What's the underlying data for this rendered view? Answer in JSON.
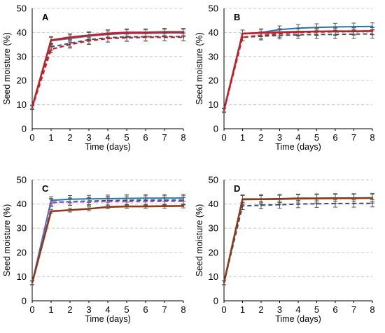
{
  "chart_data": [
    {
      "type": "line",
      "title": "A",
      "xlabel": "Time (days)",
      "ylabel": "Seed moisture (%)",
      "xlim": [
        0,
        8
      ],
      "ylim": [
        0,
        50
      ],
      "xticks": [
        "0",
        "1",
        "2",
        "3",
        "4",
        "5",
        "6",
        "7",
        "8"
      ],
      "yticks": [
        "0",
        "10",
        "20",
        "30",
        "40",
        "50"
      ],
      "grid": true,
      "x": [
        0,
        1,
        2,
        3,
        4,
        5,
        6,
        7,
        8
      ],
      "series": [
        {
          "color": "#4a6fa5",
          "dash": false,
          "width": 2,
          "values": [
            9.0,
            36.5,
            37.5,
            38.5,
            39.2,
            39.6,
            39.6,
            39.8,
            39.8
          ],
          "err": [
            0.8,
            1.5,
            1.5,
            1.5,
            1.5,
            1.5,
            1.5,
            1.5,
            1.5
          ]
        },
        {
          "color": "#3a4f6e",
          "dash": true,
          "width": 2,
          "values": [
            8.8,
            34.0,
            35.5,
            37.0,
            37.8,
            38.2,
            38.2,
            38.3,
            38.3
          ],
          "err": [
            0.8,
            1.5,
            1.5,
            1.8,
            1.8,
            1.8,
            1.8,
            1.8,
            1.8
          ]
        },
        {
          "color": "#cc1f1f",
          "dash": true,
          "width": 2.2,
          "values": [
            8.8,
            33.0,
            35.0,
            36.5,
            37.5,
            37.8,
            38.0,
            38.0,
            38.0
          ],
          "err": [
            0.8,
            1.5,
            1.5,
            1.5,
            1.5,
            1.5,
            1.5,
            1.5,
            1.5
          ]
        },
        {
          "color": "#c0202a",
          "dash": false,
          "width": 2.6,
          "values": [
            9.0,
            36.8,
            38.0,
            38.8,
            39.6,
            40.0,
            40.0,
            40.2,
            40.2
          ],
          "err": [
            0.8,
            1.5,
            1.5,
            1.5,
            1.5,
            1.5,
            1.5,
            1.5,
            1.5
          ]
        }
      ]
    },
    {
      "type": "line",
      "title": "B",
      "xlabel": "Time (days)",
      "ylabel": "Seed moisture (%)",
      "xlim": [
        0,
        8
      ],
      "ylim": [
        0,
        50
      ],
      "xticks": [
        "0",
        "1",
        "2",
        "3",
        "4",
        "5",
        "6",
        "7",
        "8"
      ],
      "yticks": [
        "0",
        "10",
        "20",
        "30",
        "40",
        "50"
      ],
      "grid": true,
      "x": [
        0,
        1,
        2,
        3,
        4,
        5,
        6,
        7,
        8
      ],
      "series": [
        {
          "color": "#1f77b4",
          "dash": false,
          "width": 2,
          "values": [
            7.8,
            39.5,
            40.0,
            41.2,
            41.8,
            42.1,
            42.3,
            42.4,
            42.5
          ],
          "err": [
            0.8,
            1.5,
            1.5,
            1.5,
            1.5,
            1.5,
            1.5,
            1.5,
            1.5
          ]
        },
        {
          "color": "#3a4f6e",
          "dash": true,
          "width": 2,
          "values": [
            7.6,
            38.0,
            38.4,
            38.8,
            39.0,
            39.2,
            39.2,
            39.3,
            39.4
          ],
          "err": [
            0.8,
            1.5,
            1.5,
            1.5,
            1.5,
            1.8,
            1.8,
            1.8,
            1.8
          ]
        },
        {
          "color": "#cc1f1f",
          "dash": true,
          "width": 2.2,
          "values": [
            7.6,
            38.0,
            38.8,
            39.5,
            40.0,
            40.2,
            40.3,
            40.4,
            40.5
          ],
          "err": [
            0.8,
            1.5,
            1.5,
            1.5,
            1.5,
            1.5,
            1.5,
            1.5,
            1.5
          ]
        },
        {
          "color": "#c0202a",
          "dash": false,
          "width": 2.6,
          "values": [
            7.8,
            39.5,
            39.8,
            40.1,
            40.3,
            40.4,
            40.5,
            40.5,
            40.6
          ],
          "err": [
            0.8,
            1.5,
            1.5,
            1.5,
            1.5,
            1.5,
            1.5,
            1.5,
            1.5
          ]
        }
      ]
    },
    {
      "type": "line",
      "title": "C",
      "xlabel": "Time (days)",
      "ylabel": "Seed moisture (%)",
      "xlim": [
        0,
        8
      ],
      "ylim": [
        0,
        50
      ],
      "xticks": [
        "0",
        "1",
        "2",
        "3",
        "4",
        "5",
        "6",
        "7",
        "8"
      ],
      "yticks": [
        "0",
        "10",
        "20",
        "30",
        "40",
        "50"
      ],
      "grid": true,
      "x": [
        0,
        1,
        2,
        3,
        4,
        5,
        6,
        7,
        8
      ],
      "series": [
        {
          "color": "#1f77b4",
          "dash": false,
          "width": 2,
          "values": [
            7.5,
            41.5,
            42.0,
            42.1,
            42.2,
            42.3,
            42.4,
            42.4,
            42.5
          ],
          "err": [
            0.8,
            1.5,
            1.5,
            1.5,
            1.5,
            1.5,
            1.5,
            1.5,
            1.5
          ]
        },
        {
          "color": "#3a4f6e",
          "dash": true,
          "width": 2,
          "values": [
            7.4,
            40.5,
            41.0,
            41.2,
            41.4,
            41.5,
            41.6,
            41.6,
            41.6
          ],
          "err": [
            0.8,
            1.5,
            1.5,
            1.5,
            1.8,
            1.8,
            1.8,
            1.8,
            1.8
          ]
        },
        {
          "color": "#9b59d0",
          "dash": true,
          "width": 2.2,
          "values": [
            7.4,
            40.8,
            40.9,
            40.9,
            41.0,
            41.0,
            41.0,
            41.1,
            41.1
          ],
          "err": [
            0.8,
            1.5,
            1.5,
            1.5,
            1.5,
            1.5,
            1.5,
            1.5,
            1.5
          ]
        },
        {
          "color": "#8b3a1a",
          "dash": false,
          "width": 2.6,
          "values": [
            7.5,
            37.0,
            37.5,
            38.0,
            38.8,
            39.0,
            39.0,
            39.1,
            39.2
          ],
          "err": [
            0.8,
            0.8,
            0.8,
            0.8,
            0.8,
            0.8,
            0.8,
            0.8,
            0.8
          ]
        }
      ]
    },
    {
      "type": "line",
      "title": "D",
      "xlabel": "Time (days)",
      "ylabel": "Seed moisture (%)",
      "xlim": [
        0,
        8
      ],
      "ylim": [
        0,
        50
      ],
      "xticks": [
        "0",
        "1",
        "2",
        "3",
        "4",
        "5",
        "6",
        "7",
        "8"
      ],
      "yticks": [
        "0",
        "10",
        "20",
        "30",
        "40",
        "50"
      ],
      "grid": true,
      "x": [
        0,
        1,
        2,
        3,
        4,
        5,
        6,
        7,
        8
      ],
      "series": [
        {
          "color": "#1f77b4",
          "dash": false,
          "width": 2,
          "values": [
            7.5,
            41.8,
            41.9,
            42.0,
            42.1,
            42.2,
            42.3,
            42.3,
            42.4
          ],
          "err": [
            0.8,
            2.0,
            2.0,
            2.0,
            2.0,
            2.0,
            2.0,
            2.0,
            2.0
          ]
        },
        {
          "color": "#3a4f6e",
          "dash": true,
          "width": 2,
          "values": [
            7.4,
            39.2,
            39.5,
            39.7,
            40.0,
            40.1,
            40.2,
            40.2,
            40.3
          ],
          "err": [
            0.8,
            1.5,
            1.5,
            1.5,
            1.5,
            1.5,
            1.5,
            1.5,
            1.5
          ]
        },
        {
          "color": "#8b3a1a",
          "dash": false,
          "width": 2.6,
          "values": [
            7.5,
            42.0,
            42.0,
            42.1,
            42.3,
            42.3,
            42.4,
            42.4,
            42.5
          ],
          "err": [
            0.8,
            1.5,
            1.5,
            1.5,
            1.5,
            1.5,
            1.5,
            1.5,
            1.5
          ]
        }
      ]
    }
  ]
}
